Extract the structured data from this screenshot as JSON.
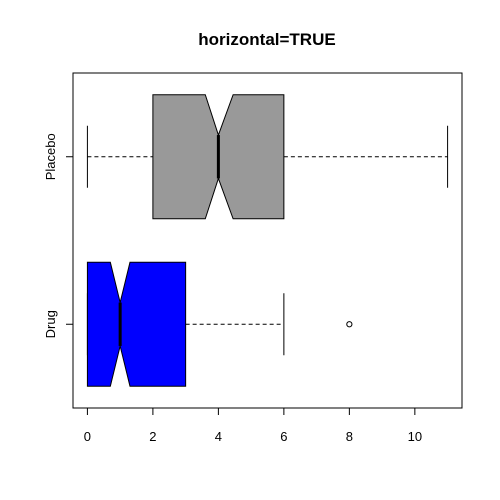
{
  "chart_data": {
    "type": "boxplot",
    "orientation": "horizontal",
    "notched": true,
    "title": "horizontal=TRUE",
    "xlabel": "",
    "ylabel": "",
    "xlim": [
      -0.44,
      11.44
    ],
    "x_ticks": [
      0,
      2,
      4,
      6,
      8,
      10
    ],
    "notch_halfwidth": 0.35,
    "categories": [
      "Drug",
      "Placebo"
    ],
    "boxes": [
      {
        "category": "Drug",
        "color": "#0000ff",
        "whisker_low": 0,
        "q1": 0,
        "median": 1,
        "q3": 3,
        "whisker_high": 6,
        "notch_low": 0.7,
        "notch_high": 1.3,
        "outliers": [
          8
        ]
      },
      {
        "category": "Placebo",
        "color": "#999999",
        "whisker_low": 0,
        "q1": 2,
        "median": 4,
        "q3": 6,
        "whisker_high": 11,
        "notch_low": 3.6,
        "notch_high": 4.45,
        "outliers": []
      }
    ],
    "grid": false,
    "legend": "none"
  }
}
